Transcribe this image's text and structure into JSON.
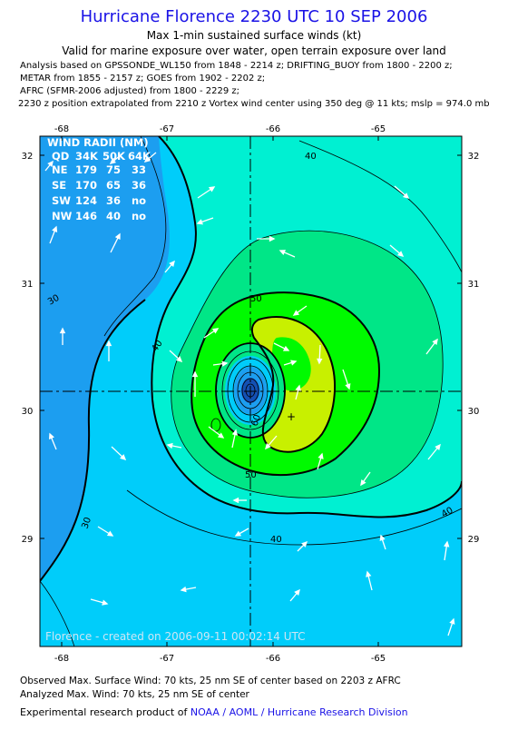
{
  "header": {
    "title": "Hurricane Florence 2230 UTC 10 SEP 2006",
    "subtitle": "Max 1-min sustained surface winds (kt)",
    "validity": "Valid for marine exposure over water, open terrain exposure over land",
    "analysis_lines": [
      "Analysis based on  GPSSONDE_WL150 from 1848 - 2214 z;  DRIFTING_BUOY from 1800 - 2200 z;",
      "METAR from 1855 - 2157 z;  GOES from 1902 - 2202 z;",
      "AFRC (SFMR-2006 adjusted) from 1800 - 2229 z;",
      "2230 z position extrapolated from 2210 z Vortex wind center using 350 deg @ 11 kts; mslp = 974.0 mb"
    ]
  },
  "map": {
    "x_ticks": [
      "-68",
      "-67",
      "-66",
      "-65"
    ],
    "y_ticks": [
      "32",
      "31",
      "30",
      "29"
    ],
    "contour_labels": [
      "40",
      "30",
      "40",
      "50",
      "60",
      "50",
      "30",
      "40",
      "40"
    ],
    "credit": "Florence  -  created on 2006-09-11 00:02:14 UTC",
    "colors": {
      "band_lt30": "#1c9ef0",
      "band_30_40": "#00cdfa",
      "band_40_50": "#00f0d2",
      "band_50_64": "#00e687",
      "band_64_83": "#00fa00",
      "band_83_plus": "#c8f000",
      "core": "#1450b4"
    }
  },
  "wind_radii": {
    "title": "WIND RADII (NM)",
    "header": [
      "QD",
      "34K",
      "50K",
      "64K"
    ],
    "rows": [
      [
        "NE",
        "179",
        "75",
        "33"
      ],
      [
        "SE",
        "170",
        "65",
        "36"
      ],
      [
        "SW",
        "124",
        "36",
        "no"
      ],
      [
        "NW",
        "146",
        "40",
        "no"
      ]
    ]
  },
  "footer": {
    "observed": "Observed Max. Surface Wind: 70 kts, 25 nm SE of center based on 2203 z AFRC",
    "analyzed": "Analyzed Max. Wind: 70 kts, 25 nm SE of center",
    "product_prefix": "Experimental research product of",
    "product_org": "NOAA / AOML / Hurricane Research Division"
  }
}
